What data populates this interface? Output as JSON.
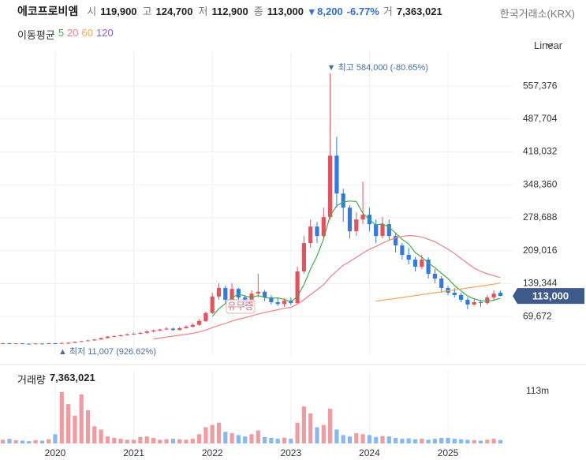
{
  "header": {
    "name": "에코프로비엠",
    "fields": [
      {
        "label": "시",
        "value": "119,900"
      },
      {
        "label": "고",
        "value": "124,700"
      },
      {
        "label": "저",
        "value": "112,900"
      },
      {
        "label": "종",
        "value": "113,000"
      }
    ],
    "change": "▾ 8,200",
    "change_pct": "-6.77%",
    "volume_field": {
      "label": "거",
      "value": "7,363,021"
    },
    "exchange": "한국거래소(KRX)",
    "current_price": "113,000"
  },
  "chart_data": {
    "type": "candlestick",
    "scale_label": "Linear",
    "categories": [
      null,
      null,
      null,
      null,
      null,
      null,
      null,
      null,
      "2020",
      null,
      null,
      null,
      null,
      null,
      null,
      null,
      null,
      null,
      null,
      null,
      "2021",
      null,
      null,
      null,
      null,
      null,
      null,
      null,
      null,
      null,
      null,
      null,
      "2022",
      null,
      null,
      null,
      null,
      null,
      null,
      null,
      null,
      null,
      null,
      null,
      "2023",
      null,
      null,
      null,
      null,
      null,
      null,
      null,
      null,
      null,
      null,
      null,
      "2024",
      null,
      null,
      null,
      null,
      null,
      null,
      null,
      null,
      null,
      null,
      null,
      "2025",
      null,
      null,
      null,
      null,
      null,
      null,
      null,
      null
    ],
    "open": [
      12000,
      13000,
      12500,
      12800,
      12000,
      11800,
      12500,
      11500,
      13000,
      12500,
      13500,
      14000,
      16000,
      17500,
      19000,
      21000,
      24000,
      27000,
      28000,
      30000,
      32000,
      33000,
      35000,
      38000,
      40000,
      42000,
      44000,
      41000,
      45000,
      48000,
      52000,
      60000,
      77000,
      112000,
      130000,
      105000,
      128000,
      110000,
      90000,
      118000,
      122000,
      110000,
      100000,
      96000,
      103000,
      98000,
      165000,
      225000,
      260000,
      240000,
      280000,
      410000,
      330000,
      300000,
      250000,
      275000,
      285000,
      265000,
      240000,
      265000,
      240000,
      220000,
      200000,
      190000,
      175000,
      190000,
      160000,
      150000,
      130000,
      120000,
      115000,
      105000,
      95000,
      100000,
      98000,
      110000,
      119900
    ],
    "high": [
      13800,
      13400,
      13300,
      13000,
      12600,
      13000,
      12800,
      13500,
      13400,
      14500,
      15000,
      16800,
      18500,
      20000,
      22000,
      25000,
      28500,
      29500,
      31500,
      33500,
      36000,
      37000,
      40000,
      42000,
      44000,
      47000,
      46000,
      47000,
      51000,
      55000,
      64000,
      80000,
      120000,
      140000,
      135000,
      140000,
      130000,
      115000,
      125000,
      160000,
      126000,
      115000,
      110000,
      108000,
      110000,
      175000,
      240000,
      275000,
      270000,
      300000,
      584000,
      450000,
      340000,
      305000,
      290000,
      355000,
      300000,
      275000,
      280000,
      275000,
      245000,
      225000,
      215000,
      195000,
      200000,
      195000,
      170000,
      155000,
      135000,
      130000,
      120000,
      110000,
      108000,
      105000,
      115000,
      125000,
      124700
    ],
    "low": [
      11500,
      12000,
      12000,
      11600,
      11400,
      11600,
      11200,
      11300,
      11007,
      12000,
      11500,
      13500,
      15500,
      17000,
      18500,
      20500,
      23000,
      26000,
      27000,
      29000,
      31000,
      32000,
      33000,
      36000,
      38000,
      41000,
      39000,
      40000,
      44000,
      47000,
      50000,
      58000,
      75000,
      105000,
      98000,
      102000,
      100000,
      85000,
      88000,
      110000,
      102000,
      95000,
      92000,
      90000,
      94000,
      96000,
      160000,
      215000,
      225000,
      235000,
      275000,
      300000,
      270000,
      235000,
      240000,
      265000,
      250000,
      225000,
      235000,
      230000,
      205000,
      190000,
      180000,
      165000,
      170000,
      150000,
      140000,
      120000,
      115000,
      110000,
      100000,
      85000,
      92000,
      90000,
      95000,
      105000,
      112900
    ],
    "close": [
      13000,
      12500,
      12800,
      12000,
      11800,
      12500,
      11500,
      13000,
      12500,
      13500,
      14000,
      16000,
      17500,
      19000,
      21000,
      24000,
      27000,
      28000,
      30000,
      32000,
      33000,
      35000,
      38000,
      40000,
      42000,
      44000,
      41000,
      45000,
      48000,
      52000,
      60000,
      77000,
      112000,
      130000,
      105000,
      128000,
      110000,
      90000,
      118000,
      122000,
      110000,
      100000,
      96000,
      103000,
      98000,
      165000,
      225000,
      260000,
      240000,
      280000,
      410000,
      330000,
      300000,
      250000,
      275000,
      285000,
      265000,
      240000,
      265000,
      240000,
      220000,
      200000,
      190000,
      175000,
      190000,
      160000,
      150000,
      130000,
      120000,
      115000,
      105000,
      95000,
      100000,
      98000,
      110000,
      118000,
      113000
    ],
    "up_color": "#e8505b",
    "down_color": "#2f7be6",
    "ylim": [
      -12000,
      631000
    ],
    "yticks": [
      {
        "value": 69672,
        "label": "69,672"
      },
      {
        "value": 139344,
        "label": "139,344"
      },
      {
        "value": 209016,
        "label": "209,016"
      },
      {
        "value": 278688,
        "label": "278,688"
      },
      {
        "value": 348360,
        "label": "348,360"
      },
      {
        "value": 418032,
        "label": "418,032"
      },
      {
        "value": 487704,
        "label": "487,704"
      },
      {
        "value": 557376,
        "label": "557,376"
      }
    ],
    "grid": true,
    "ma_title": "이동평균",
    "moving_averages": [
      {
        "name": "5",
        "color": "#3fae49",
        "values": [
          null,
          null,
          null,
          null,
          null,
          null,
          null,
          null,
          null,
          null,
          null,
          null,
          null,
          null,
          null,
          null,
          null,
          null,
          null,
          null,
          null,
          null,
          null,
          null,
          null,
          null,
          null,
          null,
          null,
          null,
          null,
          null,
          70000,
          86000,
          97000,
          110000,
          117000,
          113000,
          110000,
          114000,
          110000,
          108000,
          109000,
          106000,
          101000,
          112000,
          137000,
          170000,
          198000,
          234000,
          283000,
          304000,
          312000,
          314000,
          313000,
          288000,
          275000,
          263000,
          266000,
          259000,
          246000,
          233000,
          223000,
          205000,
          195000,
          183000,
          173000,
          161000,
          150000,
          135000,
          124000,
          113000,
          107000,
          103000,
          102000,
          104000,
          108000
        ]
      },
      {
        "name": "20",
        "color": "#f07f86",
        "values": [
          null,
          null,
          null,
          null,
          null,
          null,
          null,
          null,
          null,
          null,
          null,
          null,
          null,
          null,
          null,
          null,
          null,
          null,
          null,
          null,
          null,
          null,
          null,
          22000,
          24000,
          26000,
          28000,
          30000,
          32000,
          34000,
          37000,
          41000,
          46000,
          51000,
          55000,
          60000,
          64000,
          67000,
          71000,
          75000,
          78000,
          81000,
          84000,
          87000,
          89000,
          96000,
          105000,
          116000,
          126000,
          137000,
          153000,
          166000,
          178000,
          186000,
          195000,
          204000,
          212000,
          218000,
          225000,
          231000,
          236000,
          239000,
          241000,
          240000,
          238000,
          233000,
          228000,
          220000,
          212000,
          203000,
          192000,
          182000,
          172000,
          165000,
          160000,
          156000,
          152000
        ]
      },
      {
        "name": "60",
        "color": "#f5a55a",
        "values": [
          null,
          null,
          null,
          null,
          null,
          null,
          null,
          null,
          null,
          null,
          null,
          null,
          null,
          null,
          null,
          null,
          null,
          null,
          null,
          null,
          null,
          null,
          null,
          null,
          null,
          null,
          null,
          null,
          null,
          null,
          null,
          null,
          null,
          null,
          null,
          null,
          null,
          null,
          null,
          null,
          null,
          null,
          null,
          null,
          null,
          null,
          null,
          null,
          null,
          null,
          null,
          null,
          null,
          null,
          null,
          null,
          null,
          102000,
          104000,
          106000,
          108000,
          110000,
          112000,
          114000,
          116000,
          118000,
          120000,
          122000,
          124000,
          126000,
          128000,
          130000,
          132000,
          134000,
          136000,
          138000,
          141000
        ]
      },
      {
        "name": "120",
        "color": "#8a5cf5"
      }
    ],
    "annotations": {
      "high": "▼ 최고 584,000 (-80.65%)",
      "low": "▲ 최저 11,007 (926.62%)",
      "event": "유무증"
    },
    "volume": {
      "title": "거래량",
      "last_label": "7,363,021",
      "up_color": "#f19aa0",
      "down_color": "#86b9f2",
      "ylim": [
        0,
        157000000
      ],
      "yticks": [
        {
          "value": 113000000,
          "label": "113m"
        }
      ],
      "values": [
        8000000,
        10000000,
        7000000,
        6000000,
        5000000,
        7000000,
        6000000,
        9000000,
        20000000,
        111000000,
        85000000,
        60000000,
        106000000,
        72000000,
        37000000,
        30000000,
        15000000,
        12000000,
        10000000,
        8000000,
        8000000,
        14000000,
        15000000,
        12000000,
        8000000,
        9000000,
        10000000,
        9000000,
        8000000,
        10000000,
        20000000,
        35000000,
        40000000,
        45000000,
        25000000,
        22000000,
        18000000,
        15000000,
        20000000,
        28000000,
        14000000,
        12000000,
        10000000,
        12000000,
        10000000,
        45000000,
        80000000,
        65000000,
        35000000,
        40000000,
        75000000,
        30000000,
        18000000,
        15000000,
        22000000,
        20000000,
        18000000,
        14000000,
        16000000,
        15000000,
        12000000,
        10000000,
        11000000,
        9000000,
        10000000,
        8000000,
        10000000,
        12000000,
        12000000,
        10000000,
        9000000,
        8000000,
        7000000,
        6000000,
        8000000,
        10000000,
        7363021
      ]
    }
  }
}
